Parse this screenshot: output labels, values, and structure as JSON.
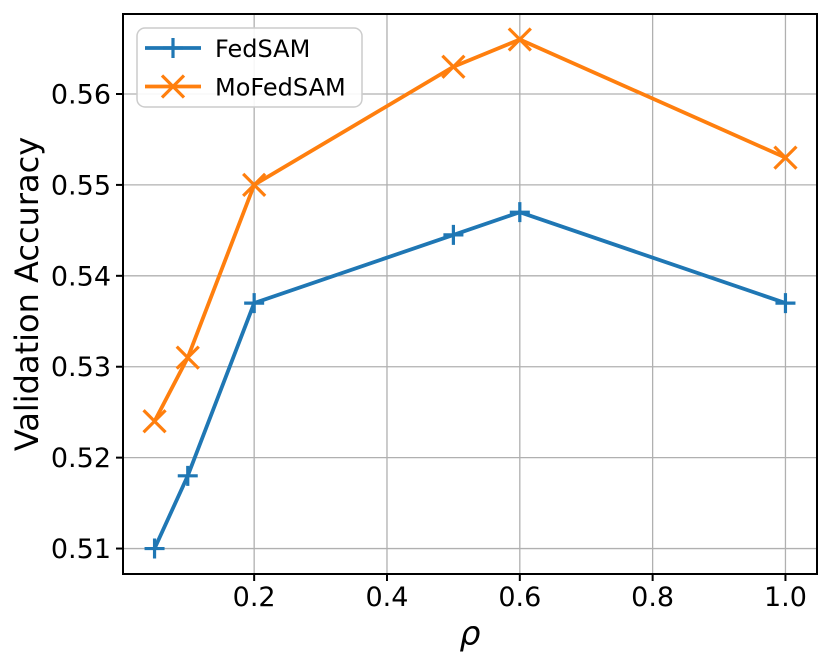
{
  "figure": {
    "background": "#ffffff",
    "text_color": "#000000"
  },
  "chart_data": {
    "type": "line",
    "xlabel": "ρ",
    "ylabel": "Validation Accuracy",
    "x": [
      0.05,
      0.1,
      0.2,
      0.5,
      0.6,
      1.0
    ],
    "series": [
      {
        "name": "FedSAM",
        "color": "#1f77b4",
        "marker": "plus",
        "values": [
          0.51,
          0.518,
          0.537,
          0.5445,
          0.547,
          0.537
        ]
      },
      {
        "name": "MoFedSAM",
        "color": "#ff7f0e",
        "marker": "x",
        "values": [
          0.524,
          0.531,
          0.55,
          0.563,
          0.566,
          0.553
        ]
      }
    ],
    "xticks": [
      0.2,
      0.4,
      0.6,
      0.8,
      1.0
    ],
    "xtick_labels": [
      "0.2",
      "0.4",
      "0.6",
      "0.8",
      "1.0"
    ],
    "yticks": [
      0.51,
      0.52,
      0.53,
      0.54,
      0.55,
      0.56
    ],
    "ytick_labels": [
      "0.51",
      "0.52",
      "0.53",
      "0.54",
      "0.55",
      "0.56"
    ],
    "xlim": [
      0.0025,
      1.0475
    ],
    "ylim": [
      0.5072,
      0.5688
    ],
    "grid": true,
    "grid_color": "#b0b0b0",
    "axis_color": "#000000",
    "legend": {
      "position": "upper-left",
      "border_color": "#cccccc",
      "background": "#ffffff",
      "entries": [
        "FedSAM",
        "MoFedSAM"
      ]
    }
  }
}
